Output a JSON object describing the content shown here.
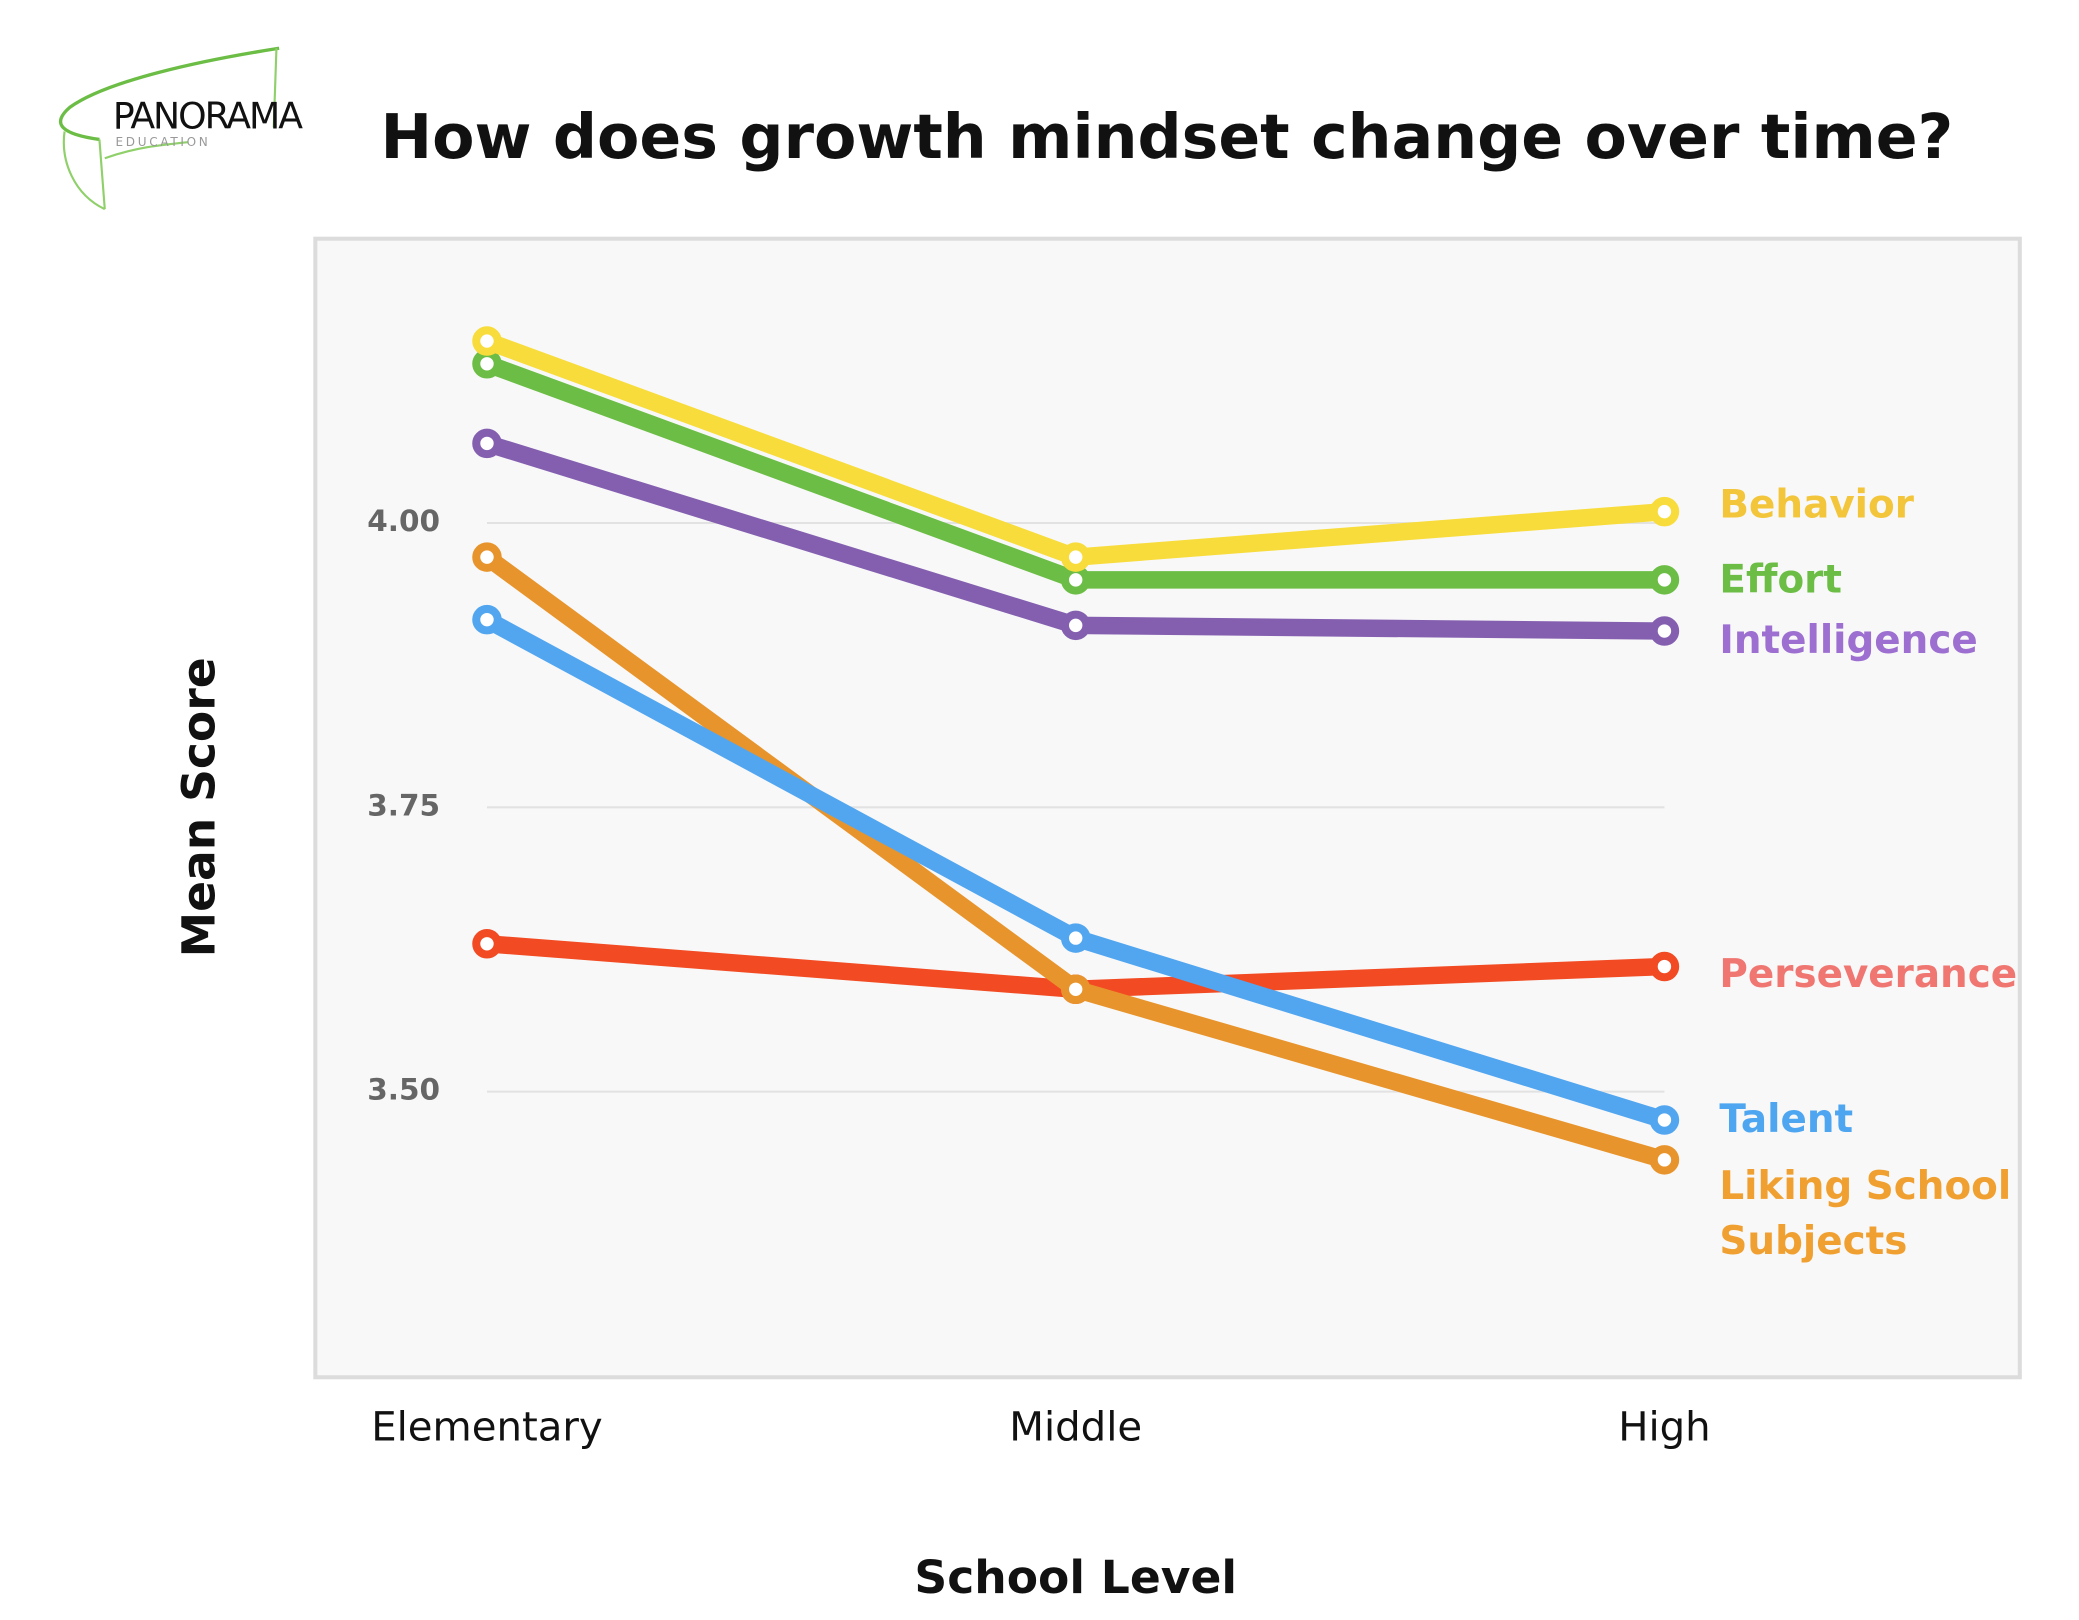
{
  "logo": {
    "name": "PANORAMA",
    "sub": "EDUCATION"
  },
  "chart_data": {
    "type": "line",
    "title": "How does growth mindset change over time?",
    "xlabel": "School Level",
    "ylabel": "Mean Score",
    "categories": [
      "Elementary",
      "Middle",
      "High"
    ],
    "yticks": [
      "4.00",
      "3.75",
      "3.50"
    ],
    "ytick_values": [
      4.0,
      3.75,
      3.5
    ],
    "ylim": [
      3.25,
      4.25
    ],
    "grid": "horizontal",
    "legend": "direct labels at right end of lines",
    "series": [
      {
        "name": "Behavior",
        "values": [
          4.16,
          3.97,
          4.01
        ],
        "color": "#F8DC3B",
        "label_color": "#F3C53A",
        "label_lines": [
          "Behavior"
        ]
      },
      {
        "name": "Effort",
        "values": [
          4.14,
          3.95,
          3.95
        ],
        "color": "#6CBD45",
        "label_color": "#6CBD45",
        "label_lines": [
          "Effort"
        ]
      },
      {
        "name": "Intelligence",
        "values": [
          4.07,
          3.91,
          3.905
        ],
        "color": "#845FB0",
        "label_color": "#9C6FD0",
        "label_lines": [
          "Intelligence"
        ]
      },
      {
        "name": "Liking School Subjects",
        "values": [
          3.97,
          3.59,
          3.44
        ],
        "color": "#E8942C",
        "label_color": "#F0A030",
        "label_lines": [
          "Liking School",
          "Subjects"
        ]
      },
      {
        "name": "Talent",
        "values": [
          3.915,
          3.635,
          3.475
        ],
        "color": "#52A6F0",
        "label_color": "#4FA6F0",
        "label_lines": [
          "Talent"
        ]
      },
      {
        "name": "Perseverance",
        "values": [
          3.63,
          3.59,
          3.61
        ],
        "color": "#F24A22",
        "label_color": "#F07672",
        "label_lines": [
          "Perseverance"
        ]
      }
    ]
  }
}
